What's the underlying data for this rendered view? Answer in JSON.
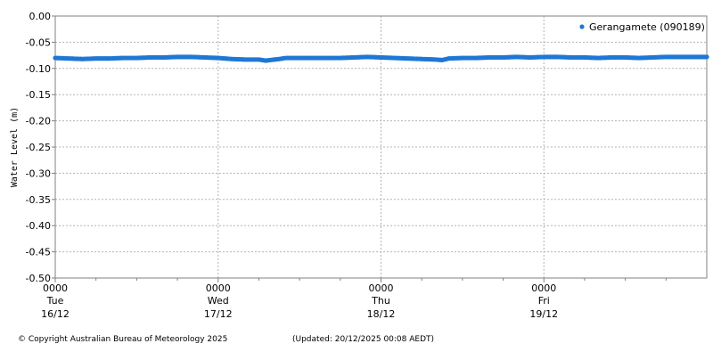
{
  "chart_data": {
    "type": "scatter",
    "ylabel": "Water Level (m)",
    "ylim": [
      -0.5,
      0.0
    ],
    "yticks": [
      "0.00",
      "-0.05",
      "-0.10",
      "-0.15",
      "-0.20",
      "-0.25",
      "-0.30",
      "-0.35",
      "-0.40",
      "-0.45",
      "-0.50"
    ],
    "ytick_values": [
      0,
      -0.05,
      -0.1,
      -0.15,
      -0.2,
      -0.25,
      -0.3,
      -0.35,
      -0.4,
      -0.45,
      -0.5
    ],
    "xlim_hours": [
      0,
      96
    ],
    "xticks": [
      {
        "hour": 0,
        "line1": "0000",
        "line2": "Tue",
        "line3": "16/12"
      },
      {
        "hour": 24,
        "line1": "0000",
        "line2": "Wed",
        "line3": "17/12"
      },
      {
        "hour": 48,
        "line1": "0000",
        "line2": "Thu",
        "line3": "18/12"
      },
      {
        "hour": 72,
        "line1": "0000",
        "line2": "Fri",
        "line3": "19/12"
      }
    ],
    "minor_tick_hours": [
      6,
      12,
      18,
      30,
      36,
      42,
      54,
      60,
      66,
      78,
      84,
      90
    ],
    "grid": true,
    "legend_position": "top-right",
    "series": [
      {
        "name": "Gerangamete (090189)",
        "color": "#1f77d4",
        "points": [
          [
            0,
            -0.08
          ],
          [
            2,
            -0.081
          ],
          [
            4,
            -0.082
          ],
          [
            6,
            -0.081
          ],
          [
            8,
            -0.081
          ],
          [
            10,
            -0.08
          ],
          [
            12,
            -0.08
          ],
          [
            14,
            -0.079
          ],
          [
            16,
            -0.079
          ],
          [
            18,
            -0.078
          ],
          [
            20,
            -0.078
          ],
          [
            22,
            -0.079
          ],
          [
            24,
            -0.08
          ],
          [
            26,
            -0.082
          ],
          [
            28,
            -0.083
          ],
          [
            30,
            -0.083
          ],
          [
            31,
            -0.085
          ],
          [
            33,
            -0.082
          ],
          [
            34,
            -0.08
          ],
          [
            36,
            -0.08
          ],
          [
            38,
            -0.08
          ],
          [
            40,
            -0.08
          ],
          [
            42,
            -0.08
          ],
          [
            44,
            -0.079
          ],
          [
            46,
            -0.078
          ],
          [
            48,
            -0.079
          ],
          [
            50,
            -0.08
          ],
          [
            52,
            -0.081
          ],
          [
            54,
            -0.082
          ],
          [
            56,
            -0.083
          ],
          [
            57,
            -0.084
          ],
          [
            58,
            -0.081
          ],
          [
            60,
            -0.08
          ],
          [
            62,
            -0.08
          ],
          [
            64,
            -0.079
          ],
          [
            66,
            -0.079
          ],
          [
            68,
            -0.078
          ],
          [
            70,
            -0.079
          ],
          [
            72,
            -0.078
          ],
          [
            74,
            -0.078
          ],
          [
            76,
            -0.079
          ],
          [
            78,
            -0.079
          ],
          [
            80,
            -0.08
          ],
          [
            82,
            -0.079
          ],
          [
            84,
            -0.079
          ],
          [
            86,
            -0.08
          ],
          [
            88,
            -0.079
          ],
          [
            90,
            -0.078
          ],
          [
            92,
            -0.078
          ],
          [
            94,
            -0.078
          ],
          [
            96,
            -0.078
          ]
        ]
      }
    ]
  },
  "footer": {
    "copyright": "© Copyright Australian Bureau of Meteorology 2025",
    "updated": "(Updated: 20/12/2025 00:08 AEDT)"
  }
}
